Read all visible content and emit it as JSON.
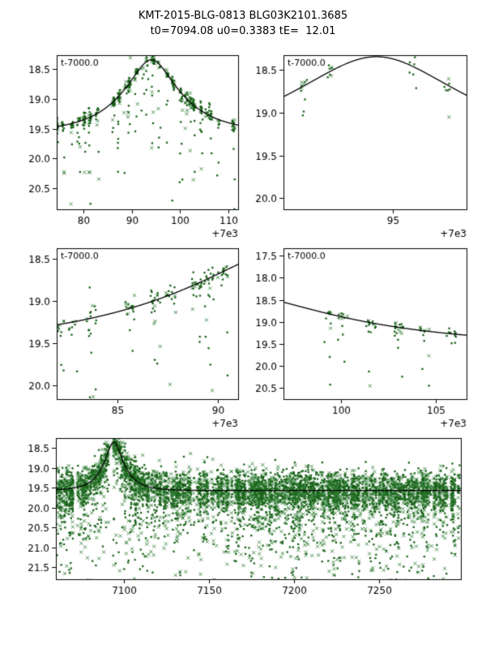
{
  "title": {
    "line1": "KMT-2015-BLG-0813 BLG03K2101.3685",
    "line2": "t0=7094.08 u0=0.3383 tE=  12.01"
  },
  "model": {
    "t0": 7094.08,
    "u0": 0.3383,
    "tE": 12.01,
    "base_mag": 19.57
  },
  "colors": {
    "data": "#176117",
    "data_x": "#2e7d32",
    "curve": "#000000",
    "axis": "#000000",
    "background": "#ffffff"
  },
  "chart_data": [
    {
      "id": "top-left",
      "type": "scatter",
      "title": "",
      "xlabel": "",
      "ylabel": "",
      "annotation": "t-7000.0",
      "offset_text": "+7e3",
      "xlim": [
        7074.5,
        7112.0
      ],
      "ylim": [
        18.27,
        20.85
      ],
      "xticks": [
        7080,
        7090,
        7100,
        7110
      ],
      "xtick_labels": [
        "80",
        "90",
        "100",
        "110"
      ],
      "yticks": [
        18.5,
        19.0,
        19.5,
        20.0,
        20.5
      ],
      "ytick_labels": [
        "18.5",
        "19.0",
        "19.5",
        "20.0",
        "20.5"
      ],
      "scatter": {
        "seed": 7,
        "step": [
          0.7,
          1.7
        ],
        "p_night": 0.85,
        "pts": [
          6,
          28
        ],
        "x_jitter": 0.3,
        "sigma": 0.045,
        "sigma_slope": 0.5,
        "out_frac": 0.3,
        "out_scale": 0.55,
        "x_frac": 0.25
      }
    },
    {
      "id": "top-right",
      "type": "scatter",
      "title": "",
      "xlabel": "",
      "ylabel": "",
      "annotation": "t-7000.0",
      "offset_text": "+7e3",
      "xlim": [
        7088.8,
        7099.2
      ],
      "ylim": [
        18.33,
        20.13
      ],
      "xticks": [
        7095
      ],
      "xtick_labels": [
        "95"
      ],
      "yticks": [
        18.5,
        19.0,
        19.5,
        20.0
      ],
      "ytick_labels": [
        "18.5",
        "19.0",
        "19.5",
        "20.0"
      ],
      "scatter": {
        "seed": 11,
        "step": [
          1.0,
          2.3
        ],
        "p_night": 0.75,
        "pts": [
          4,
          14
        ],
        "x_jitter": 0.22,
        "sigma": 0.04,
        "sigma_slope": 0.5,
        "out_frac": 0.18,
        "out_scale": 0.25,
        "x_frac": 0.2
      }
    },
    {
      "id": "middle-left",
      "type": "scatter",
      "title": "",
      "xlabel": "",
      "ylabel": "",
      "annotation": "t-7000.0",
      "offset_text": "+7e3",
      "xlim": [
        7082.0,
        7091.0
      ],
      "ylim": [
        18.38,
        20.16
      ],
      "xticks": [
        7085,
        7090
      ],
      "xtick_labels": [
        "85",
        "90"
      ],
      "yticks": [
        18.5,
        19.0,
        19.5,
        20.0
      ],
      "ytick_labels": [
        "18.5",
        "19.0",
        "19.5",
        "20.0"
      ],
      "scatter": {
        "seed": 23,
        "step": [
          0.6,
          1.3
        ],
        "p_night": 0.8,
        "pts": [
          8,
          24
        ],
        "x_jitter": 0.25,
        "sigma": 0.05,
        "sigma_slope": 0.5,
        "out_frac": 0.28,
        "out_scale": 0.4,
        "x_frac": 0.25
      }
    },
    {
      "id": "middle-right",
      "type": "scatter",
      "title": "",
      "xlabel": "",
      "ylabel": "",
      "annotation": "t-7000.0",
      "offset_text": "+7e3",
      "xlim": [
        7097.0,
        7106.6
      ],
      "ylim": [
        17.33,
        20.75
      ],
      "xticks": [
        7100,
        7105
      ],
      "xtick_labels": [
        "100",
        "105"
      ],
      "yticks": [
        17.5,
        18.0,
        18.5,
        19.0,
        19.5,
        20.0,
        20.5
      ],
      "ytick_labels": [
        "17.5",
        "18.0",
        "18.5",
        "19.0",
        "19.5",
        "20.0",
        "20.5"
      ],
      "scatter": {
        "seed": 31,
        "step": [
          0.7,
          1.5
        ],
        "p_night": 0.8,
        "pts": [
          6,
          20
        ],
        "x_jitter": 0.25,
        "sigma": 0.05,
        "sigma_slope": 0.5,
        "out_frac": 0.35,
        "out_scale": 0.6,
        "x_frac": 0.3
      }
    },
    {
      "id": "bottom-full",
      "type": "scatter",
      "title": "",
      "xlabel": "",
      "ylabel": "",
      "annotation": "",
      "offset_text": "",
      "xlim": [
        7060.0,
        7298.0
      ],
      "ylim": [
        18.25,
        21.8
      ],
      "xticks": [
        7100,
        7150,
        7200,
        7250
      ],
      "xtick_labels": [
        "7100",
        "7150",
        "7200",
        "7250"
      ],
      "yticks": [
        18.5,
        19.0,
        19.5,
        20.0,
        20.5,
        21.0,
        21.5
      ],
      "ytick_labels": [
        "18.5",
        "19.0",
        "19.5",
        "20.0",
        "20.5",
        "21.0",
        "21.5"
      ],
      "scatter": {
        "seed": 47,
        "step": [
          0.45,
          1.05
        ],
        "p_night": 0.85,
        "pts": [
          10,
          34
        ],
        "x_jitter": 0.3,
        "sigma": 0.17,
        "sigma_slope": 0.4,
        "out_frac": 0.35,
        "out_scale": 0.75,
        "x_frac": 0.4
      }
    }
  ]
}
